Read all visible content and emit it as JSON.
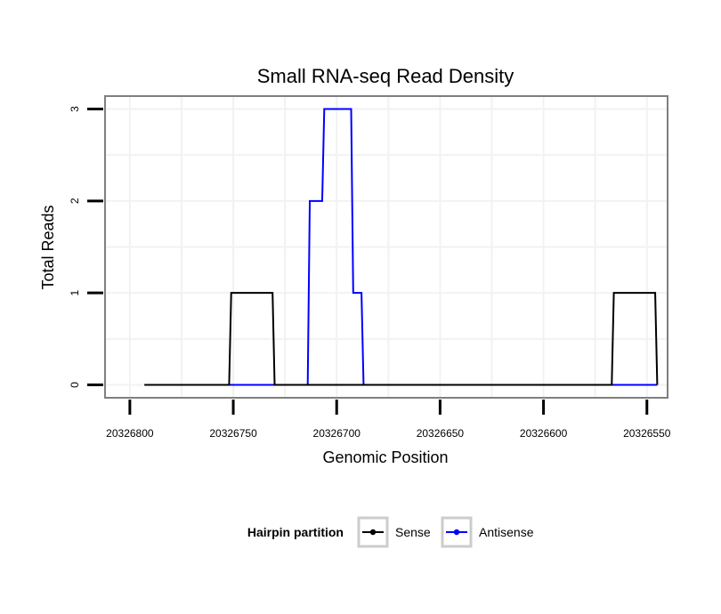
{
  "chart_data": {
    "type": "line",
    "title": "Small RNA-seq Read Density",
    "xlabel": "Genomic Position",
    "ylabel": "Total Reads",
    "x_reversed": true,
    "xlim": [
      20326812,
      20326540
    ],
    "ylim": [
      -0.14,
      3.14
    ],
    "xticks": [
      20326800,
      20326750,
      20326700,
      20326650,
      20326600,
      20326550
    ],
    "xtick_labels": [
      "20326800",
      "20326750",
      "20326700",
      "20326650",
      "20326600",
      "20326550"
    ],
    "yticks": [
      0,
      1,
      2,
      3
    ],
    "ytick_labels": [
      "0",
      "1",
      "2",
      "3"
    ],
    "grid": true,
    "legend": {
      "title": "Hairpin partition",
      "position": "bottom"
    },
    "series": [
      {
        "name": "Sense",
        "color": "#000000",
        "points": [
          [
            20326793,
            0
          ],
          [
            20326752,
            0
          ],
          [
            20326751,
            1
          ],
          [
            20326731,
            1
          ],
          [
            20326730,
            0
          ],
          [
            20326567,
            0
          ],
          [
            20326566,
            1
          ],
          [
            20326546,
            1
          ],
          [
            20326545,
            0
          ]
        ]
      },
      {
        "name": "Antisense",
        "color": "#0000ff",
        "points": [
          [
            20326752,
            0
          ],
          [
            20326730,
            0
          ],
          [
            20326714,
            0
          ],
          [
            20326713,
            2
          ],
          [
            20326707,
            2
          ],
          [
            20326706,
            3
          ],
          [
            20326693,
            3
          ],
          [
            20326692,
            1
          ],
          [
            20326688,
            1
          ],
          [
            20326687,
            0
          ],
          [
            20326567,
            0
          ],
          [
            20326546,
            0
          ],
          [
            20326545,
            0
          ]
        ]
      }
    ]
  }
}
